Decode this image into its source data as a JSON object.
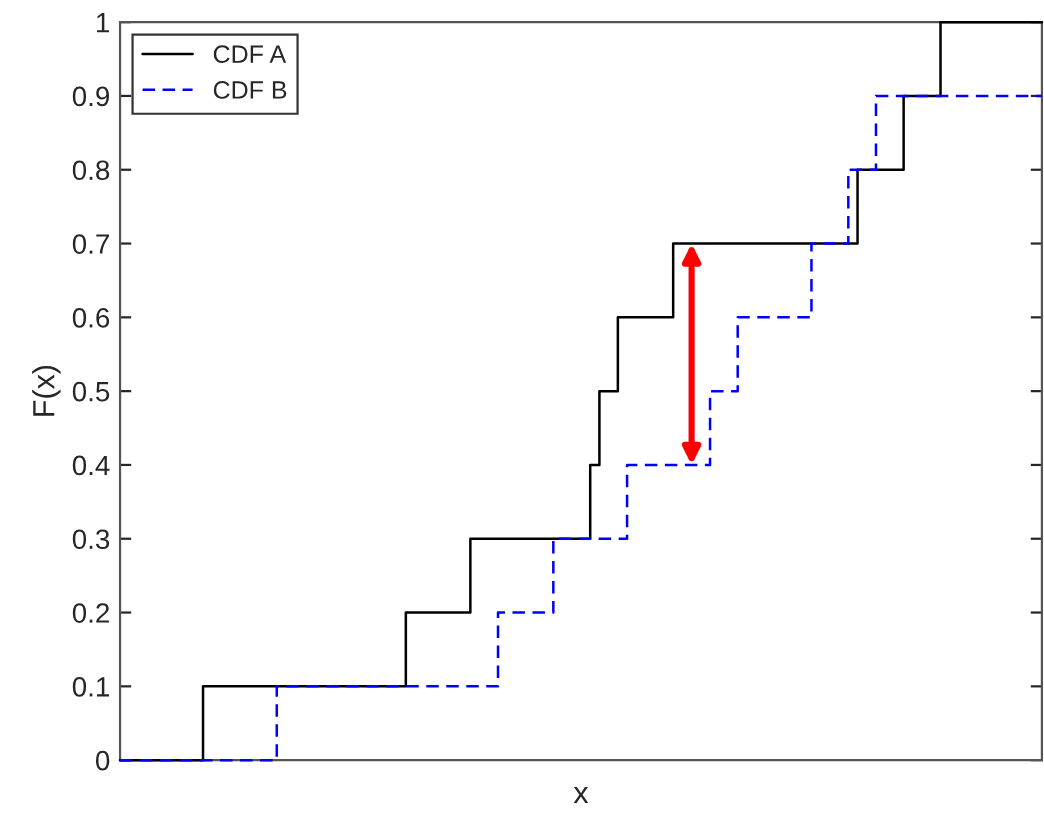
{
  "chart_data": {
    "type": "step",
    "xlabel": "x",
    "ylabel": "F(x)",
    "categories": [
      null,
      null,
      null,
      null,
      null,
      null,
      null,
      null,
      null,
      null,
      null,
      null,
      null,
      null,
      null,
      null,
      null,
      null,
      null,
      null,
      null,
      null,
      null,
      null,
      null,
      null,
      null,
      null,
      null,
      null,
      null,
      null,
      null,
      null,
      null,
      null,
      null,
      null,
      null,
      null,
      null,
      null,
      null,
      null,
      null,
      null,
      null,
      null,
      null,
      null,
      null,
      null,
      null,
      null,
      null,
      null,
      null,
      null,
      null,
      null,
      null,
      null,
      null,
      null,
      null,
      null,
      null,
      null,
      null,
      null,
      null,
      null,
      null,
      null,
      null,
      null,
      null,
      null,
      null,
      null,
      null,
      null,
      null,
      null,
      null,
      null,
      null,
      null,
      null,
      null,
      null,
      null,
      null,
      null,
      null,
      null,
      null,
      null,
      null,
      null,
      null
    ],
    "ylim": [
      0,
      1
    ],
    "yticks": [
      0,
      0.1,
      0.2,
      0.3,
      0.4,
      0.5,
      0.6,
      0.7,
      0.8,
      0.9,
      1
    ],
    "grid": false,
    "legend": "top left",
    "marker": "none",
    "series": [
      {
        "name": "CDF A",
        "color": "#000000",
        "line_style": "solid",
        "values": [
          0,
          0,
          0,
          0,
          0,
          0,
          0,
          0,
          0,
          0.1,
          0.1,
          0.1,
          0.1,
          0.1,
          0.1,
          0.1,
          0.1,
          0.1,
          0.1,
          0.1,
          0.1,
          0.1,
          0.1,
          0.1,
          0.1,
          0.1,
          0.1,
          0.1,
          0.1,
          0.1,
          0.1,
          0.2,
          0.2,
          0.2,
          0.2,
          0.2,
          0.2,
          0.2,
          0.3,
          0.3,
          0.3,
          0.3,
          0.3,
          0.3,
          0.3,
          0.3,
          0.3,
          0.3,
          0.3,
          0.3,
          0.3,
          0.4,
          0.5,
          0.5,
          0.6,
          0.6,
          0.6,
          0.6,
          0.6,
          0.6,
          0.7,
          0.7,
          0.7,
          0.7,
          0.7,
          0.7,
          0.7,
          0.7,
          0.7,
          0.7,
          0.7,
          0.7,
          0.7,
          0.7,
          0.7,
          0.7,
          0.7,
          0.7,
          0.7,
          0.7,
          0.8,
          0.8,
          0.8,
          0.8,
          0.8,
          0.9,
          0.9,
          0.9,
          0.9,
          1,
          1,
          1,
          1,
          1,
          1,
          1,
          1,
          1,
          1,
          1,
          1
        ]
      },
      {
        "name": "CDF B",
        "color": "#0000ff",
        "line_style": "dashed",
        "values": [
          0,
          0,
          0,
          0,
          0,
          0,
          0,
          0,
          0,
          0,
          0,
          0,
          0,
          0,
          0,
          0,
          0,
          0.1,
          0.1,
          0.1,
          0.1,
          0.1,
          0.1,
          0.1,
          0.1,
          0.1,
          0.1,
          0.1,
          0.1,
          0.1,
          0.1,
          0.1,
          0.1,
          0.1,
          0.1,
          0.1,
          0.1,
          0.1,
          0.1,
          0.1,
          0.1,
          0.2,
          0.2,
          0.2,
          0.2,
          0.2,
          0.2,
          0.3,
          0.3,
          0.3,
          0.3,
          0.3,
          0.3,
          0.3,
          0.3,
          0.4,
          0.4,
          0.4,
          0.4,
          0.4,
          0.4,
          0.4,
          0.4,
          0.4,
          0.5,
          0.5,
          0.5,
          0.6,
          0.6,
          0.6,
          0.6,
          0.6,
          0.6,
          0.6,
          0.6,
          0.7,
          0.7,
          0.7,
          0.7,
          0.8,
          0.8,
          0.8,
          0.9,
          0.9,
          0.9,
          0.9,
          0.9,
          0.9,
          0.9,
          0.9,
          0.9,
          0.9,
          0.9,
          0.9,
          0.9,
          0.9,
          0.9,
          0.9,
          0.9,
          0.9,
          0.9
        ]
      }
    ]
  }
}
